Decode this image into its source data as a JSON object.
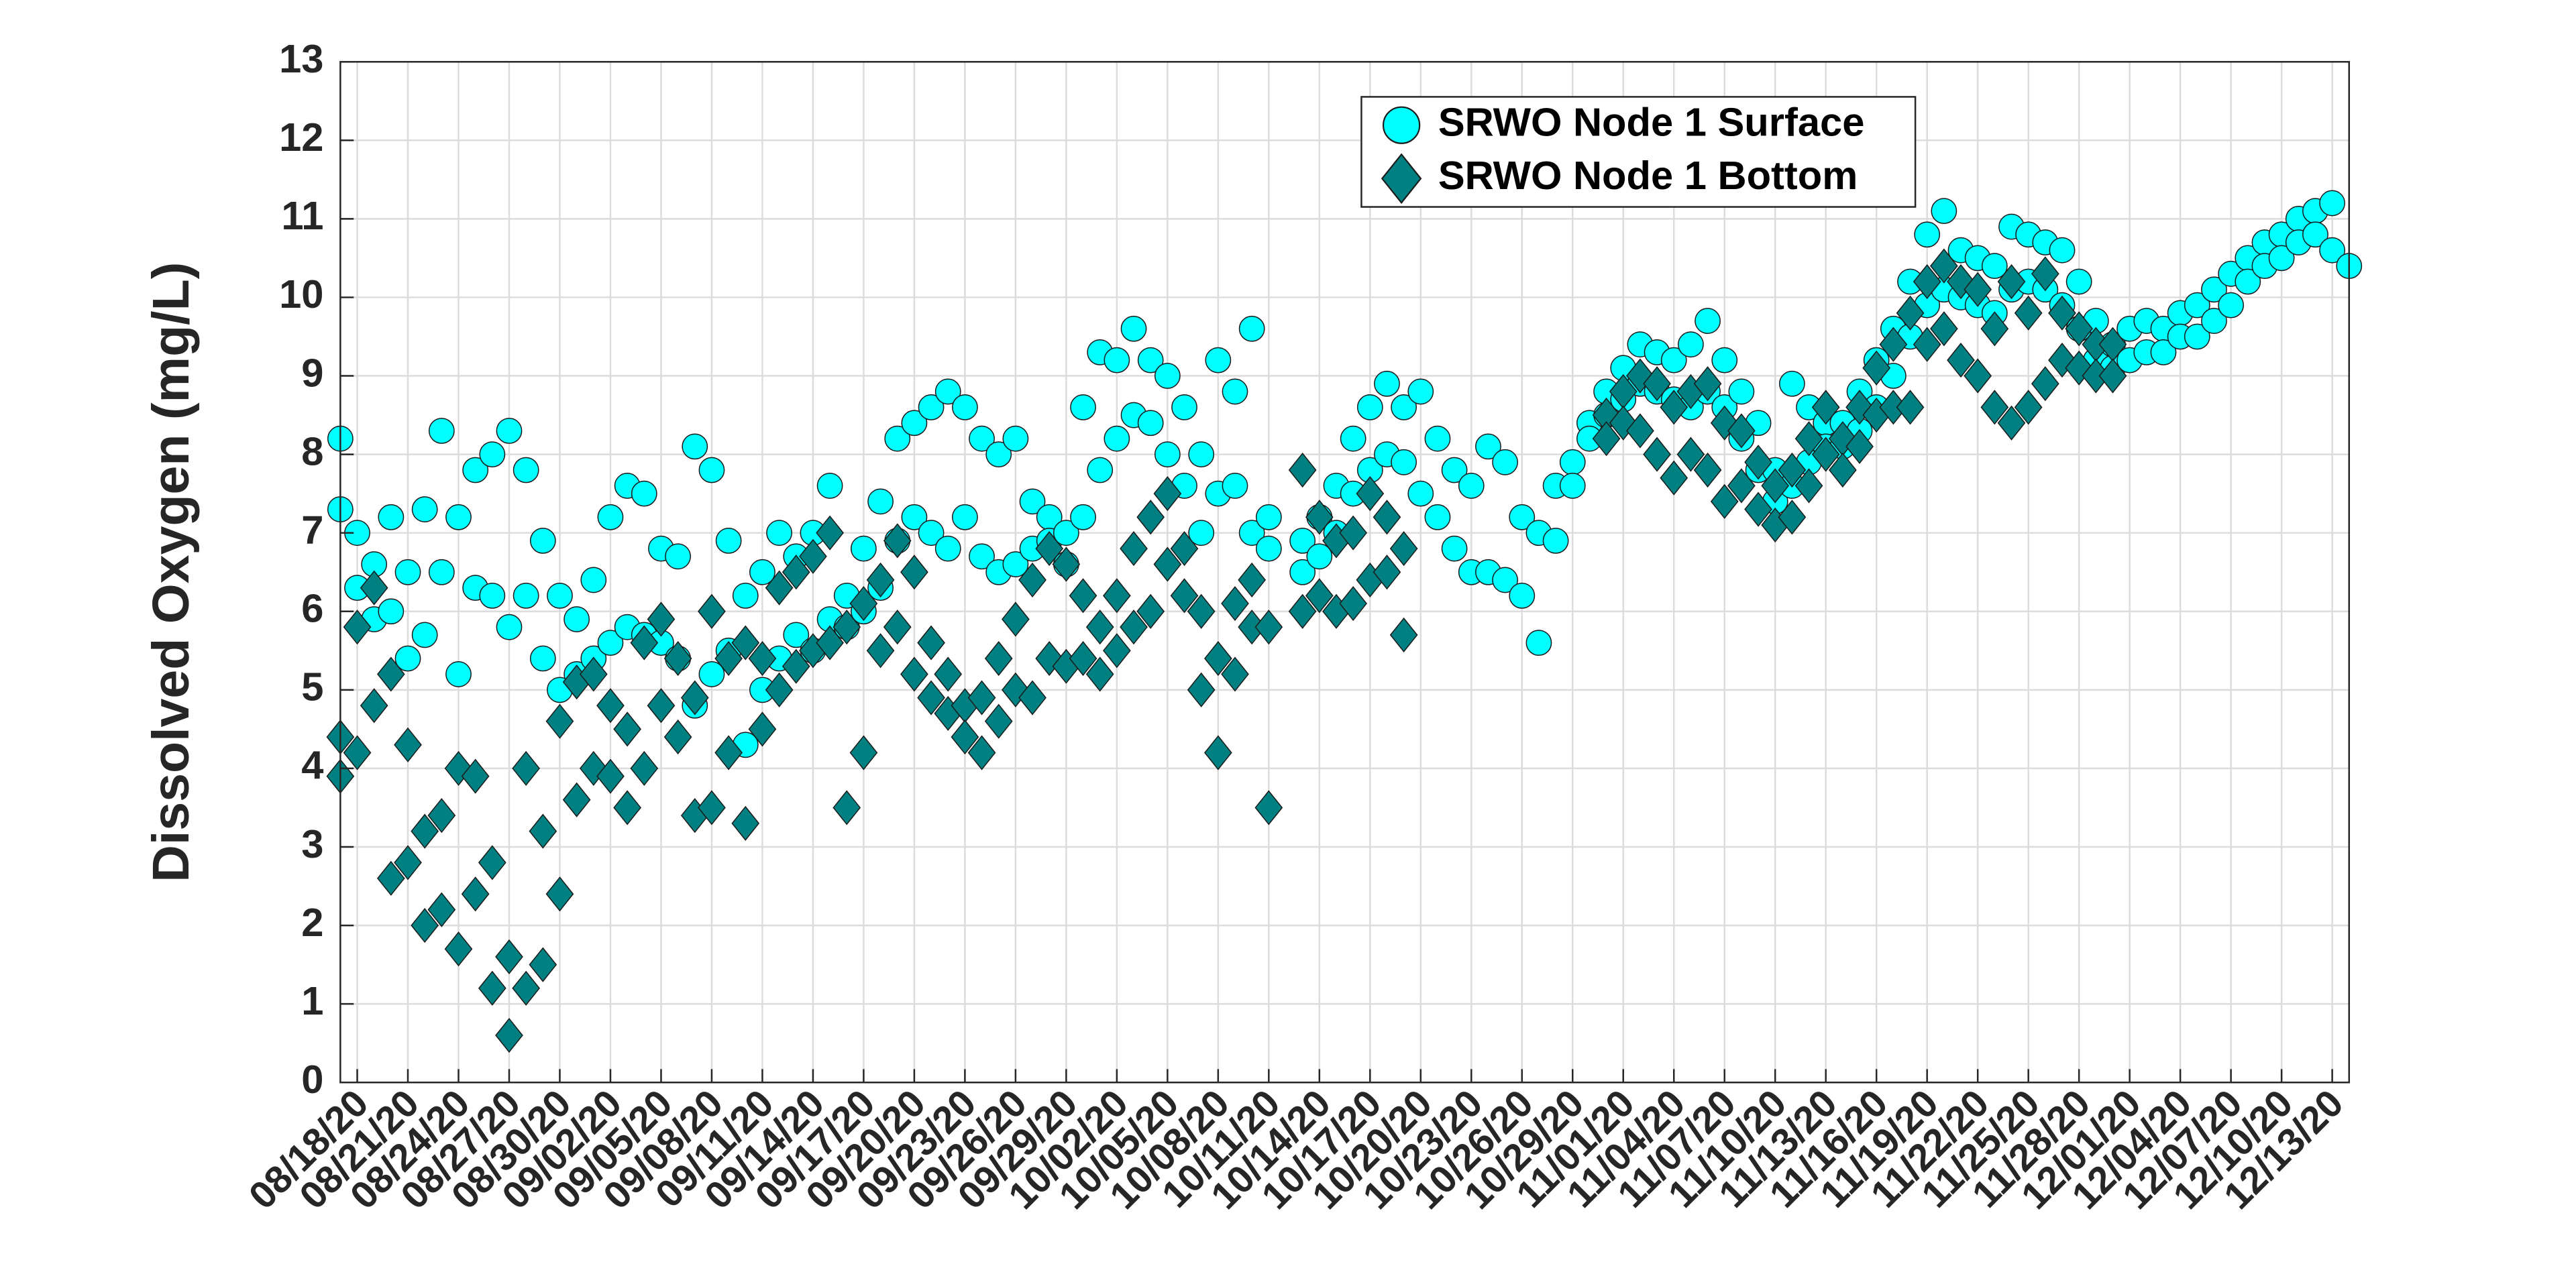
{
  "chart_data": {
    "type": "scatter",
    "ylabel": "Dissolved Oxygen (mg/L)",
    "ylim": [
      0,
      13
    ],
    "yticks": [
      0,
      1,
      2,
      3,
      4,
      5,
      6,
      7,
      8,
      9,
      10,
      11,
      12,
      13
    ],
    "xlim": [
      "08/17/20",
      "12/14/20"
    ],
    "xticks": [
      "08/18/20",
      "08/21/20",
      "08/24/20",
      "08/27/20",
      "08/30/20",
      "09/02/20",
      "09/05/20",
      "09/08/20",
      "09/11/20",
      "09/14/20",
      "09/17/20",
      "09/20/20",
      "09/23/20",
      "09/26/20",
      "09/29/20",
      "10/02/20",
      "10/05/20",
      "10/08/20",
      "10/11/20",
      "10/14/20",
      "10/17/20",
      "10/20/20",
      "10/23/20",
      "10/26/20",
      "10/29/20",
      "11/01/20",
      "11/04/20",
      "11/07/20",
      "11/10/20",
      "11/13/20",
      "11/16/20",
      "11/19/20",
      "11/22/20",
      "11/25/20",
      "11/28/20",
      "12/01/20",
      "12/04/20",
      "12/07/20",
      "12/10/20",
      "12/13/20"
    ],
    "grid": true,
    "legend": "top-right",
    "series": [
      {
        "name": "SRWO Node 1 Surface",
        "color": "#00ffff",
        "marker": "circle",
        "x": [
          "08/17/20",
          "08/17/20",
          "08/18/20",
          "08/18/20",
          "08/19/20",
          "08/19/20",
          "08/20/20",
          "08/20/20",
          "08/21/20",
          "08/21/20",
          "08/22/20",
          "08/22/20",
          "08/23/20",
          "08/23/20",
          "08/24/20",
          "08/24/20",
          "08/25/20",
          "08/25/20",
          "08/26/20",
          "08/26/20",
          "08/27/20",
          "08/27/20",
          "08/28/20",
          "08/28/20",
          "08/29/20",
          "08/29/20",
          "08/30/20",
          "08/30/20",
          "08/31/20",
          "08/31/20",
          "09/01/20",
          "09/01/20",
          "09/02/20",
          "09/02/20",
          "09/03/20",
          "09/03/20",
          "09/04/20",
          "09/04/20",
          "09/05/20",
          "09/05/20",
          "09/06/20",
          "09/06/20",
          "09/07/20",
          "09/07/20",
          "09/08/20",
          "09/08/20",
          "09/09/20",
          "09/09/20",
          "09/10/20",
          "09/10/20",
          "09/11/20",
          "09/11/20",
          "09/12/20",
          "09/12/20",
          "09/13/20",
          "09/13/20",
          "09/14/20",
          "09/14/20",
          "09/15/20",
          "09/15/20",
          "09/16/20",
          "09/16/20",
          "09/17/20",
          "09/17/20",
          "09/18/20",
          "09/18/20",
          "09/19/20",
          "09/19/20",
          "09/20/20",
          "09/20/20",
          "09/21/20",
          "09/21/20",
          "09/22/20",
          "09/22/20",
          "09/23/20",
          "09/23/20",
          "09/24/20",
          "09/24/20",
          "09/25/20",
          "09/25/20",
          "09/26/20",
          "09/26/20",
          "09/27/20",
          "09/27/20",
          "09/28/20",
          "09/28/20",
          "09/29/20",
          "09/29/20",
          "09/30/20",
          "09/30/20",
          "10/01/20",
          "10/01/20",
          "10/02/20",
          "10/02/20",
          "10/03/20",
          "10/03/20",
          "10/04/20",
          "10/04/20",
          "10/05/20",
          "10/05/20",
          "10/06/20",
          "10/06/20",
          "10/07/20",
          "10/07/20",
          "10/08/20",
          "10/08/20",
          "10/09/20",
          "10/09/20",
          "10/10/20",
          "10/10/20",
          "10/11/20",
          "10/11/20",
          "10/13/20",
          "10/13/20",
          "10/14/20",
          "10/14/20",
          "10/15/20",
          "10/15/20",
          "10/16/20",
          "10/16/20",
          "10/17/20",
          "10/17/20",
          "10/18/20",
          "10/18/20",
          "10/19/20",
          "10/19/20",
          "10/20/20",
          "10/20/20",
          "10/21/20",
          "10/21/20",
          "10/22/20",
          "10/22/20",
          "10/23/20",
          "10/23/20",
          "10/24/20",
          "10/24/20",
          "10/25/20",
          "10/25/20",
          "10/26/20",
          "10/26/20",
          "10/27/20",
          "10/27/20",
          "10/28/20",
          "10/28/20",
          "10/29/20",
          "10/29/20",
          "10/30/20",
          "10/30/20",
          "10/31/20",
          "10/31/20",
          "11/01/20",
          "11/01/20",
          "11/02/20",
          "11/02/20",
          "11/03/20",
          "11/03/20",
          "11/04/20",
          "11/04/20",
          "11/05/20",
          "11/05/20",
          "11/06/20",
          "11/06/20",
          "11/07/20",
          "11/07/20",
          "11/08/20",
          "11/08/20",
          "11/09/20",
          "11/09/20",
          "11/10/20",
          "11/10/20",
          "11/11/20",
          "11/11/20",
          "11/12/20",
          "11/12/20",
          "11/13/20",
          "11/13/20",
          "11/14/20",
          "11/14/20",
          "11/15/20",
          "11/15/20",
          "11/16/20",
          "11/16/20",
          "11/17/20",
          "11/17/20",
          "11/18/20",
          "11/18/20",
          "11/19/20",
          "11/19/20",
          "11/20/20",
          "11/20/20",
          "11/21/20",
          "11/21/20",
          "11/22/20",
          "11/22/20",
          "11/23/20",
          "11/23/20",
          "11/24/20",
          "11/24/20",
          "11/25/20",
          "11/25/20",
          "11/26/20",
          "11/26/20",
          "11/27/20",
          "11/27/20",
          "11/28/20",
          "11/28/20",
          "11/29/20",
          "11/29/20",
          "11/30/20",
          "11/30/20",
          "12/01/20",
          "12/01/20",
          "12/02/20",
          "12/02/20",
          "12/03/20",
          "12/03/20",
          "12/04/20",
          "12/04/20",
          "12/05/20",
          "12/05/20",
          "12/06/20",
          "12/06/20",
          "12/07/20",
          "12/07/20",
          "12/08/20",
          "12/08/20",
          "12/09/20",
          "12/09/20",
          "12/10/20",
          "12/10/20",
          "12/11/20",
          "12/11/20",
          "12/12/20",
          "12/12/20",
          "12/13/20",
          "12/13/20",
          "12/14/20"
        ],
        "values": [
          8.2,
          7.3,
          6.3,
          7.0,
          6.6,
          5.9,
          7.2,
          6.0,
          6.5,
          5.4,
          7.3,
          5.7,
          8.3,
          6.5,
          7.2,
          5.2,
          7.8,
          6.3,
          8.0,
          6.2,
          8.3,
          5.8,
          7.8,
          6.2,
          6.9,
          5.4,
          6.2,
          5.0,
          5.9,
          5.2,
          6.4,
          5.4,
          7.2,
          5.6,
          7.6,
          5.8,
          7.5,
          5.7,
          6.8,
          5.6,
          6.7,
          5.4,
          8.1,
          4.8,
          7.8,
          5.2,
          6.9,
          5.5,
          6.2,
          4.3,
          6.5,
          5.0,
          7.0,
          5.4,
          6.7,
          5.7,
          7.0,
          5.5,
          7.6,
          5.9,
          6.2,
          5.8,
          6.8,
          6.0,
          7.4,
          6.3,
          8.2,
          6.9,
          8.4,
          7.2,
          8.6,
          7.0,
          8.8,
          6.8,
          8.6,
          7.2,
          8.2,
          6.7,
          8.0,
          6.5,
          8.2,
          6.6,
          7.4,
          6.8,
          7.2,
          6.9,
          7.0,
          6.6,
          8.6,
          7.2,
          9.3,
          7.8,
          9.2,
          8.2,
          9.6,
          8.5,
          9.2,
          8.4,
          9.0,
          8.0,
          8.6,
          7.6,
          8.0,
          7.0,
          9.2,
          7.5,
          8.8,
          7.6,
          9.6,
          7.0,
          7.2,
          6.8,
          6.9,
          6.5,
          7.2,
          6.7,
          7.6,
          7.0,
          8.2,
          7.5,
          8.6,
          7.8,
          8.9,
          8.0,
          8.6,
          7.9,
          8.8,
          7.5,
          8.2,
          7.2,
          7.8,
          6.8,
          7.6,
          6.5,
          8.1,
          6.5,
          7.9,
          6.4,
          7.2,
          6.2,
          7.0,
          5.6,
          7.6,
          6.9,
          7.9,
          7.6,
          8.4,
          8.2,
          8.8,
          8.5,
          9.1,
          8.7,
          9.4,
          8.9,
          9.3,
          8.8,
          9.2,
          8.7,
          9.4,
          8.6,
          9.7,
          8.8,
          9.2,
          8.6,
          8.8,
          8.2,
          8.4,
          7.8,
          7.8,
          7.4,
          8.9,
          7.6,
          8.6,
          7.9,
          8.4,
          8.1,
          8.4,
          8.1,
          8.8,
          8.3,
          9.2,
          8.6,
          9.6,
          9.0,
          10.2,
          9.5,
          10.8,
          9.9,
          11.1,
          10.1,
          10.6,
          10.0,
          10.5,
          9.9,
          10.4,
          9.8,
          10.9,
          10.1,
          10.8,
          10.2,
          10.7,
          10.1,
          10.6,
          9.9,
          10.2,
          9.6,
          9.7,
          9.2,
          9.4,
          9.1,
          9.6,
          9.2,
          9.7,
          9.3,
          9.6,
          9.3,
          9.8,
          9.5,
          9.9,
          9.5,
          10.1,
          9.7,
          10.3,
          9.9,
          10.5,
          10.2,
          10.7,
          10.4,
          10.8,
          10.5,
          11.0,
          10.7,
          11.1,
          10.8,
          11.2,
          10.6,
          10.4
        ]
      },
      {
        "name": "SRWO Node 1 Bottom",
        "color": "#008080",
        "marker": "diamond",
        "x": [
          "08/17/20",
          "08/17/20",
          "08/18/20",
          "08/18/20",
          "08/19/20",
          "08/19/20",
          "08/20/20",
          "08/20/20",
          "08/21/20",
          "08/21/20",
          "08/22/20",
          "08/22/20",
          "08/23/20",
          "08/23/20",
          "08/24/20",
          "08/24/20",
          "08/25/20",
          "08/25/20",
          "08/26/20",
          "08/26/20",
          "08/27/20",
          "08/27/20",
          "08/28/20",
          "08/28/20",
          "08/29/20",
          "08/29/20",
          "08/30/20",
          "08/30/20",
          "08/31/20",
          "08/31/20",
          "09/01/20",
          "09/01/20",
          "09/02/20",
          "09/02/20",
          "09/03/20",
          "09/03/20",
          "09/04/20",
          "09/04/20",
          "09/05/20",
          "09/05/20",
          "09/06/20",
          "09/06/20",
          "09/07/20",
          "09/07/20",
          "09/08/20",
          "09/08/20",
          "09/09/20",
          "09/09/20",
          "09/10/20",
          "09/10/20",
          "09/11/20",
          "09/11/20",
          "09/12/20",
          "09/12/20",
          "09/13/20",
          "09/13/20",
          "09/14/20",
          "09/14/20",
          "09/15/20",
          "09/15/20",
          "09/16/20",
          "09/16/20",
          "09/17/20",
          "09/17/20",
          "09/18/20",
          "09/18/20",
          "09/19/20",
          "09/19/20",
          "09/20/20",
          "09/20/20",
          "09/21/20",
          "09/21/20",
          "09/22/20",
          "09/22/20",
          "09/23/20",
          "09/23/20",
          "09/24/20",
          "09/24/20",
          "09/25/20",
          "09/25/20",
          "09/26/20",
          "09/26/20",
          "09/27/20",
          "09/27/20",
          "09/28/20",
          "09/28/20",
          "09/29/20",
          "09/29/20",
          "09/30/20",
          "09/30/20",
          "10/01/20",
          "10/01/20",
          "10/02/20",
          "10/02/20",
          "10/03/20",
          "10/03/20",
          "10/04/20",
          "10/04/20",
          "10/05/20",
          "10/05/20",
          "10/06/20",
          "10/06/20",
          "10/07/20",
          "10/07/20",
          "10/08/20",
          "10/08/20",
          "10/09/20",
          "10/09/20",
          "10/10/20",
          "10/10/20",
          "10/11/20",
          "10/11/20",
          "10/13/20",
          "10/13/20",
          "10/14/20",
          "10/14/20",
          "10/15/20",
          "10/15/20",
          "10/16/20",
          "10/16/20",
          "10/17/20",
          "10/17/20",
          "10/18/20",
          "10/18/20",
          "10/19/20",
          "10/19/20",
          "10/31/20",
          "10/31/20",
          "11/01/20",
          "11/01/20",
          "11/02/20",
          "11/02/20",
          "11/03/20",
          "11/03/20",
          "11/04/20",
          "11/04/20",
          "11/05/20",
          "11/05/20",
          "11/06/20",
          "11/06/20",
          "11/07/20",
          "11/07/20",
          "11/08/20",
          "11/08/20",
          "11/09/20",
          "11/09/20",
          "11/10/20",
          "11/10/20",
          "11/11/20",
          "11/11/20",
          "11/12/20",
          "11/12/20",
          "11/13/20",
          "11/13/20",
          "11/14/20",
          "11/14/20",
          "11/15/20",
          "11/15/20",
          "11/16/20",
          "11/16/20",
          "11/17/20",
          "11/17/20",
          "11/18/20",
          "11/18/20",
          "11/19/20",
          "11/19/20",
          "11/20/20",
          "11/20/20",
          "11/21/20",
          "11/21/20",
          "11/22/20",
          "11/22/20",
          "11/23/20",
          "11/23/20",
          "11/24/20",
          "11/24/20",
          "11/25/20",
          "11/25/20",
          "11/26/20",
          "11/26/20",
          "11/27/20",
          "11/27/20",
          "11/28/20",
          "11/28/20",
          "11/29/20",
          "11/29/20",
          "11/30/20",
          "11/30/20"
        ],
        "values": [
          4.4,
          3.9,
          5.8,
          4.2,
          6.3,
          4.8,
          5.2,
          2.6,
          4.3,
          2.8,
          3.2,
          2.0,
          3.4,
          2.2,
          4.0,
          1.7,
          3.9,
          2.4,
          2.8,
          1.2,
          1.6,
          0.6,
          4.0,
          1.2,
          3.2,
          1.5,
          4.6,
          2.4,
          5.1,
          3.6,
          5.2,
          4.0,
          4.8,
          3.9,
          4.5,
          3.5,
          5.6,
          4.0,
          5.9,
          4.8,
          5.4,
          4.4,
          4.9,
          3.4,
          6.0,
          3.5,
          5.4,
          4.2,
          5.6,
          3.3,
          5.4,
          4.5,
          6.3,
          5.0,
          6.5,
          5.3,
          6.7,
          5.5,
          7.0,
          5.6,
          5.8,
          3.5,
          6.1,
          4.2,
          6.4,
          5.5,
          6.9,
          5.8,
          6.5,
          5.2,
          5.6,
          4.9,
          5.2,
          4.7,
          4.8,
          4.4,
          4.9,
          4.2,
          5.4,
          4.6,
          5.9,
          5.0,
          6.4,
          4.9,
          6.8,
          5.4,
          6.6,
          5.3,
          6.2,
          5.4,
          5.8,
          5.2,
          6.2,
          5.5,
          6.8,
          5.8,
          7.2,
          6.0,
          7.5,
          6.6,
          6.8,
          6.2,
          6.0,
          5.0,
          5.4,
          4.2,
          6.1,
          5.2,
          6.4,
          5.8,
          5.8,
          3.5,
          7.8,
          6.0,
          7.2,
          6.2,
          6.9,
          6.0,
          7.0,
          6.1,
          7.5,
          6.4,
          7.2,
          6.5,
          6.8,
          5.7,
          8.5,
          8.2,
          8.8,
          8.4,
          9.0,
          8.3,
          8.9,
          8.0,
          8.6,
          7.7,
          8.8,
          8.0,
          8.9,
          7.8,
          8.4,
          7.4,
          8.3,
          7.6,
          7.9,
          7.3,
          7.6,
          7.1,
          7.8,
          7.2,
          8.2,
          7.6,
          8.6,
          8.0,
          8.2,
          7.8,
          8.6,
          8.1,
          9.1,
          8.5,
          9.4,
          8.6,
          9.8,
          8.6,
          10.2,
          9.4,
          10.4,
          9.6,
          10.2,
          9.2,
          10.1,
          9.0,
          9.6,
          8.6,
          10.2,
          8.4,
          9.8,
          8.6,
          10.3,
          8.9,
          9.8,
          9.2,
          9.6,
          9.1,
          9.4,
          9.0,
          9.4,
          9.0
        ]
      }
    ]
  }
}
